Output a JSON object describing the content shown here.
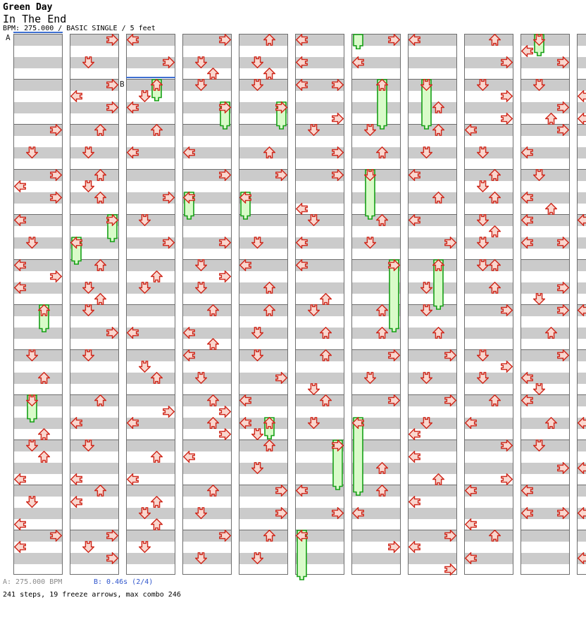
{
  "header": {
    "artist": "Green Day",
    "title": "In The End",
    "info": "BPM: 275.000 / BASIC SINGLE / 5 feet"
  },
  "footer": {
    "marker_a_info": "A: 275.000 BPM",
    "marker_b_info": "B: 0.46s (2/4)",
    "summary": "241 steps, 19 freeze arrows, max combo 246"
  },
  "colors": {
    "arrow_fill": "#f9d7cf",
    "arrow_stroke": "#cf2518",
    "freeze_fill": "#d9fbc9",
    "freeze_stroke": "#16a016",
    "stripe_gray": "#cbcbcb",
    "box_border": "#6e6e6e",
    "marker_blue": "#3e6fd0",
    "marker_a_gray": "#8a8a8a",
    "marker_b_blue": "#2f55cc"
  },
  "chart": {
    "markers": [
      {
        "label": "A",
        "column": 1,
        "row": 0
      },
      {
        "label": "B",
        "column": 3,
        "row": 4
      }
    ],
    "columns": [
      {
        "arrows": [
          [
            8,
            "R"
          ],
          [
            10,
            "D"
          ],
          [
            12,
            "R"
          ],
          [
            13,
            "L"
          ],
          [
            14,
            "R"
          ],
          [
            16,
            "L"
          ],
          [
            18,
            "D"
          ],
          [
            20,
            "L"
          ],
          [
            21,
            "R"
          ],
          [
            22,
            "L"
          ],
          [
            24,
            "U"
          ],
          [
            28,
            "D"
          ],
          [
            30,
            "U"
          ],
          [
            32,
            "D"
          ],
          [
            35,
            "U"
          ],
          [
            36,
            "D"
          ],
          [
            37,
            "U"
          ],
          [
            39,
            "L"
          ],
          [
            41,
            "D"
          ],
          [
            43,
            "L"
          ],
          [
            44,
            "R"
          ],
          [
            45,
            "L"
          ]
        ],
        "freezes": [
          [
            24,
            26,
            "U"
          ],
          [
            32,
            34,
            "D"
          ]
        ]
      },
      {
        "arrows": [
          [
            0,
            "R"
          ],
          [
            2,
            "D"
          ],
          [
            4,
            "R"
          ],
          [
            5,
            "L"
          ],
          [
            6,
            "R"
          ],
          [
            8,
            "U"
          ],
          [
            10,
            "D"
          ],
          [
            12,
            "U"
          ],
          [
            13,
            "D"
          ],
          [
            14,
            "U"
          ],
          [
            16,
            "R"
          ],
          [
            18,
            "L"
          ],
          [
            20,
            "U"
          ],
          [
            22,
            "D"
          ],
          [
            23,
            "U"
          ],
          [
            24,
            "D"
          ],
          [
            26,
            "R"
          ],
          [
            28,
            "D"
          ],
          [
            32,
            "U"
          ],
          [
            34,
            "L"
          ],
          [
            36,
            "D"
          ],
          [
            39,
            "L"
          ],
          [
            40,
            "U"
          ],
          [
            41,
            "L"
          ],
          [
            44,
            "R"
          ],
          [
            45,
            "D"
          ],
          [
            46,
            "R"
          ]
        ],
        "freezes": [
          [
            16,
            18,
            "R"
          ],
          [
            18,
            20,
            "L"
          ]
        ]
      },
      {
        "arrows": [
          [
            0,
            "L"
          ],
          [
            2,
            "R"
          ],
          [
            4,
            "U"
          ],
          [
            5,
            "D"
          ],
          [
            6,
            "L"
          ],
          [
            8,
            "U"
          ],
          [
            10,
            "L"
          ],
          [
            14,
            "R"
          ],
          [
            16,
            "D"
          ],
          [
            18,
            "R"
          ],
          [
            21,
            "U"
          ],
          [
            22,
            "D"
          ],
          [
            26,
            "L"
          ],
          [
            29,
            "D"
          ],
          [
            30,
            "U"
          ],
          [
            33,
            "R"
          ],
          [
            34,
            "L"
          ],
          [
            37,
            "U"
          ],
          [
            39,
            "L"
          ],
          [
            41,
            "U"
          ],
          [
            42,
            "D"
          ],
          [
            43,
            "U"
          ],
          [
            45,
            "D"
          ]
        ],
        "freezes": [
          [
            4,
            5.5,
            "U"
          ]
        ]
      },
      {
        "arrows": [
          [
            0,
            "R"
          ],
          [
            2,
            "D"
          ],
          [
            3,
            "U"
          ],
          [
            4,
            "D"
          ],
          [
            6,
            "R"
          ],
          [
            10,
            "L"
          ],
          [
            12,
            "R"
          ],
          [
            14,
            "L"
          ],
          [
            18,
            "R"
          ],
          [
            20,
            "D"
          ],
          [
            21,
            "R"
          ],
          [
            22,
            "D"
          ],
          [
            24,
            "U"
          ],
          [
            26,
            "L"
          ],
          [
            27,
            "U"
          ],
          [
            28,
            "L"
          ],
          [
            30,
            "D"
          ],
          [
            32,
            "U"
          ],
          [
            33,
            "R"
          ],
          [
            34,
            "U"
          ],
          [
            35,
            "R"
          ],
          [
            37,
            "L"
          ],
          [
            40,
            "U"
          ],
          [
            42,
            "D"
          ],
          [
            44,
            "R"
          ],
          [
            46,
            "D"
          ]
        ],
        "freezes": [
          [
            6,
            8,
            "R"
          ],
          [
            14,
            16,
            "L"
          ]
        ]
      },
      {
        "arrows": [
          [
            0,
            "U"
          ],
          [
            2,
            "D"
          ],
          [
            3,
            "U"
          ],
          [
            4,
            "D"
          ],
          [
            6,
            "R"
          ],
          [
            10,
            "U"
          ],
          [
            12,
            "R"
          ],
          [
            14,
            "L"
          ],
          [
            18,
            "D"
          ],
          [
            20,
            "L"
          ],
          [
            22,
            "U"
          ],
          [
            24,
            "U"
          ],
          [
            26,
            "D"
          ],
          [
            28,
            "D"
          ],
          [
            30,
            "R"
          ],
          [
            32,
            "L"
          ],
          [
            34,
            "L"
          ],
          [
            34,
            "U"
          ],
          [
            35,
            "D"
          ],
          [
            36,
            "U"
          ],
          [
            38,
            "D"
          ],
          [
            40,
            "R"
          ],
          [
            42,
            "R"
          ],
          [
            44,
            "U"
          ],
          [
            46,
            "D"
          ]
        ],
        "freezes": [
          [
            6,
            8,
            "R"
          ],
          [
            14,
            16,
            "L"
          ],
          [
            34,
            35.5,
            "U"
          ]
        ]
      },
      {
        "arrows": [
          [
            0,
            "L"
          ],
          [
            2,
            "L"
          ],
          [
            4,
            "L"
          ],
          [
            4,
            "R"
          ],
          [
            7,
            "R"
          ],
          [
            8,
            "D"
          ],
          [
            10,
            "R"
          ],
          [
            12,
            "R"
          ],
          [
            15,
            "L"
          ],
          [
            16,
            "D"
          ],
          [
            18,
            "L"
          ],
          [
            20,
            "L"
          ],
          [
            23,
            "U"
          ],
          [
            24,
            "D"
          ],
          [
            26,
            "U"
          ],
          [
            28,
            "U"
          ],
          [
            31,
            "D"
          ],
          [
            32,
            "U"
          ],
          [
            34,
            "D"
          ],
          [
            36,
            "R"
          ],
          [
            40,
            "L"
          ],
          [
            42,
            "R"
          ],
          [
            44,
            "L"
          ]
        ],
        "freezes": [
          [
            36,
            40,
            "R"
          ],
          [
            44,
            48,
            "L"
          ]
        ]
      },
      {
        "arrows": [
          [
            0,
            "R"
          ],
          [
            2,
            "L"
          ],
          [
            4,
            "U"
          ],
          [
            8,
            "D"
          ],
          [
            10,
            "U"
          ],
          [
            12,
            "D"
          ],
          [
            16,
            "U"
          ],
          [
            18,
            "D"
          ],
          [
            20,
            "R"
          ],
          [
            24,
            "U"
          ],
          [
            26,
            "U"
          ],
          [
            28,
            "R"
          ],
          [
            30,
            "D"
          ],
          [
            32,
            "R"
          ],
          [
            34,
            "L"
          ],
          [
            38,
            "U"
          ],
          [
            40,
            "U"
          ],
          [
            42,
            "L"
          ],
          [
            45,
            "R"
          ]
        ],
        "freezes": [
          [
            4,
            8,
            "U"
          ],
          [
            12,
            16,
            "D"
          ],
          [
            20,
            26,
            "R"
          ],
          [
            34,
            40.5,
            "L"
          ],
          [
            0,
            0.9,
            "L",
            "tail"
          ]
        ]
      },
      {
        "arrows": [
          [
            0,
            "L"
          ],
          [
            4,
            "D"
          ],
          [
            6,
            "U"
          ],
          [
            8,
            "U"
          ],
          [
            10,
            "D"
          ],
          [
            12,
            "L"
          ],
          [
            14,
            "U"
          ],
          [
            16,
            "L"
          ],
          [
            18,
            "R"
          ],
          [
            20,
            "U"
          ],
          [
            22,
            "D"
          ],
          [
            24,
            "D"
          ],
          [
            26,
            "U"
          ],
          [
            28,
            "R"
          ],
          [
            30,
            "D"
          ],
          [
            32,
            "R"
          ],
          [
            34,
            "D"
          ],
          [
            35,
            "L"
          ],
          [
            37,
            "L"
          ],
          [
            39,
            "U"
          ],
          [
            41,
            "L"
          ],
          [
            44,
            "R"
          ],
          [
            45,
            "L"
          ],
          [
            47,
            "R"
          ]
        ],
        "freezes": [
          [
            4,
            8,
            "D"
          ],
          [
            20,
            24,
            "U"
          ]
        ]
      },
      {
        "arrows": [
          [
            0,
            "U"
          ],
          [
            2,
            "R"
          ],
          [
            4,
            "D"
          ],
          [
            5,
            "R"
          ],
          [
            7,
            "R"
          ],
          [
            8,
            "L"
          ],
          [
            10,
            "D"
          ],
          [
            12,
            "U"
          ],
          [
            13,
            "D"
          ],
          [
            14,
            "U"
          ],
          [
            16,
            "D"
          ],
          [
            17,
            "U"
          ],
          [
            18,
            "D"
          ],
          [
            20,
            "D"
          ],
          [
            20,
            "U"
          ],
          [
            22,
            "U"
          ],
          [
            24,
            "R"
          ],
          [
            28,
            "D"
          ],
          [
            29,
            "R"
          ],
          [
            30,
            "D"
          ],
          [
            32,
            "U"
          ],
          [
            34,
            "L"
          ],
          [
            36,
            "R"
          ],
          [
            39,
            "R"
          ],
          [
            40,
            "L"
          ],
          [
            43,
            "L"
          ],
          [
            44,
            "U"
          ],
          [
            46,
            "L"
          ]
        ],
        "freezes": []
      },
      {
        "arrows": [
          [
            0,
            "D"
          ],
          [
            1,
            "L"
          ],
          [
            2,
            "R"
          ],
          [
            4,
            "D"
          ],
          [
            6,
            "R"
          ],
          [
            7,
            "U"
          ],
          [
            8,
            "R"
          ],
          [
            10,
            "L"
          ],
          [
            12,
            "D"
          ],
          [
            14,
            "L"
          ],
          [
            15,
            "U"
          ],
          [
            16,
            "L"
          ],
          [
            18,
            "L"
          ],
          [
            18,
            "R"
          ],
          [
            22,
            "R"
          ],
          [
            23,
            "D"
          ],
          [
            24,
            "R"
          ],
          [
            26,
            "U"
          ],
          [
            28,
            "R"
          ],
          [
            30,
            "L"
          ],
          [
            31,
            "D"
          ],
          [
            32,
            "L"
          ],
          [
            34,
            "U"
          ],
          [
            36,
            "D"
          ],
          [
            38,
            "R"
          ],
          [
            40,
            "L"
          ],
          [
            42,
            "L"
          ],
          [
            42,
            "R"
          ]
        ],
        "freezes": [
          [
            0,
            1.5,
            "D"
          ]
        ]
      },
      {
        "arrows": [
          [
            5,
            "L"
          ],
          [
            7,
            "L"
          ],
          [
            16,
            "L"
          ],
          [
            24,
            "L"
          ],
          [
            34,
            "L"
          ],
          [
            38,
            "L"
          ],
          [
            42,
            "L"
          ],
          [
            46,
            "L"
          ]
        ],
        "freezes": []
      }
    ]
  }
}
